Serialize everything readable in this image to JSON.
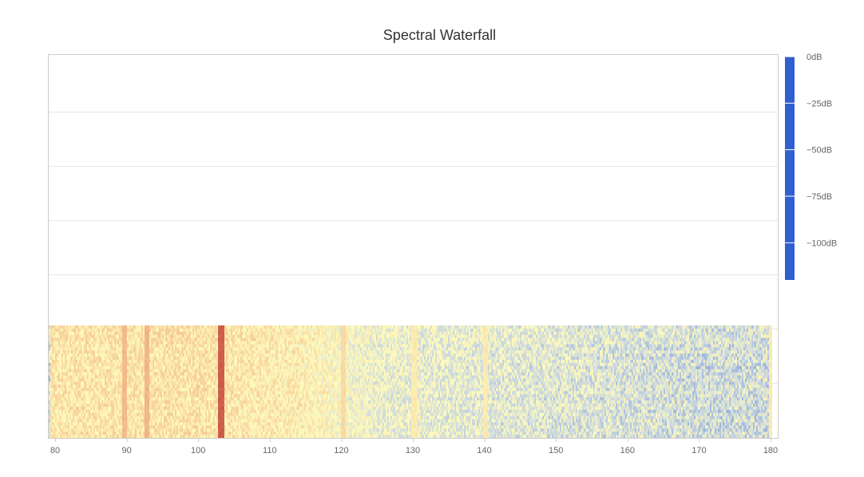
{
  "chart_data": {
    "type": "heatmap",
    "title": "Spectral Waterfall",
    "xlabel": "",
    "ylabel": "",
    "x_ticks": [
      "80",
      "90",
      "100",
      "110",
      "120",
      "130",
      "140",
      "150",
      "160",
      "170",
      "180"
    ],
    "xlim": [
      80,
      180
    ],
    "grid": true,
    "colorbar": {
      "ticks": [
        "−100dB",
        "−75dB",
        "−50dB",
        "−25dB",
        "0dB"
      ],
      "tick_values": [
        -100,
        -75,
        -50,
        -25,
        0
      ],
      "range": [
        -120,
        0
      ],
      "stops": [
        {
          "value": -120,
          "color": "#3060cf"
        },
        {
          "value": -90,
          "color": "#c8d6e0"
        },
        {
          "value": -70,
          "color": "#fffbbc"
        },
        {
          "value": -35,
          "color": "#f0b080"
        },
        {
          "value": 0,
          "color": "#c4463a"
        }
      ]
    },
    "data_x_range": [
      79,
      180
    ],
    "num_rows": 36,
    "base_level_profile": [
      {
        "x": 79,
        "db": -60
      },
      {
        "x": 100,
        "db": -58
      },
      {
        "x": 115,
        "db": -65
      },
      {
        "x": 125,
        "db": -77
      },
      {
        "x": 140,
        "db": -80
      },
      {
        "x": 160,
        "db": -84
      },
      {
        "x": 170,
        "db": -86
      },
      {
        "x": 178,
        "db": -86
      }
    ],
    "strong_signals": [
      {
        "x": 103.0,
        "db": -8,
        "label": "103"
      },
      {
        "x": 89.5,
        "db": -40,
        "label": "89.5"
      },
      {
        "x": 92.7,
        "db": -38,
        "label": "92.7"
      },
      {
        "x": 120.0,
        "db": -55,
        "label": "120"
      },
      {
        "x": 130.0,
        "db": -62,
        "label": "130"
      },
      {
        "x": 140.0,
        "db": -62,
        "label": "140"
      },
      {
        "x": 180.0,
        "db": -62,
        "label": "180"
      }
    ]
  }
}
